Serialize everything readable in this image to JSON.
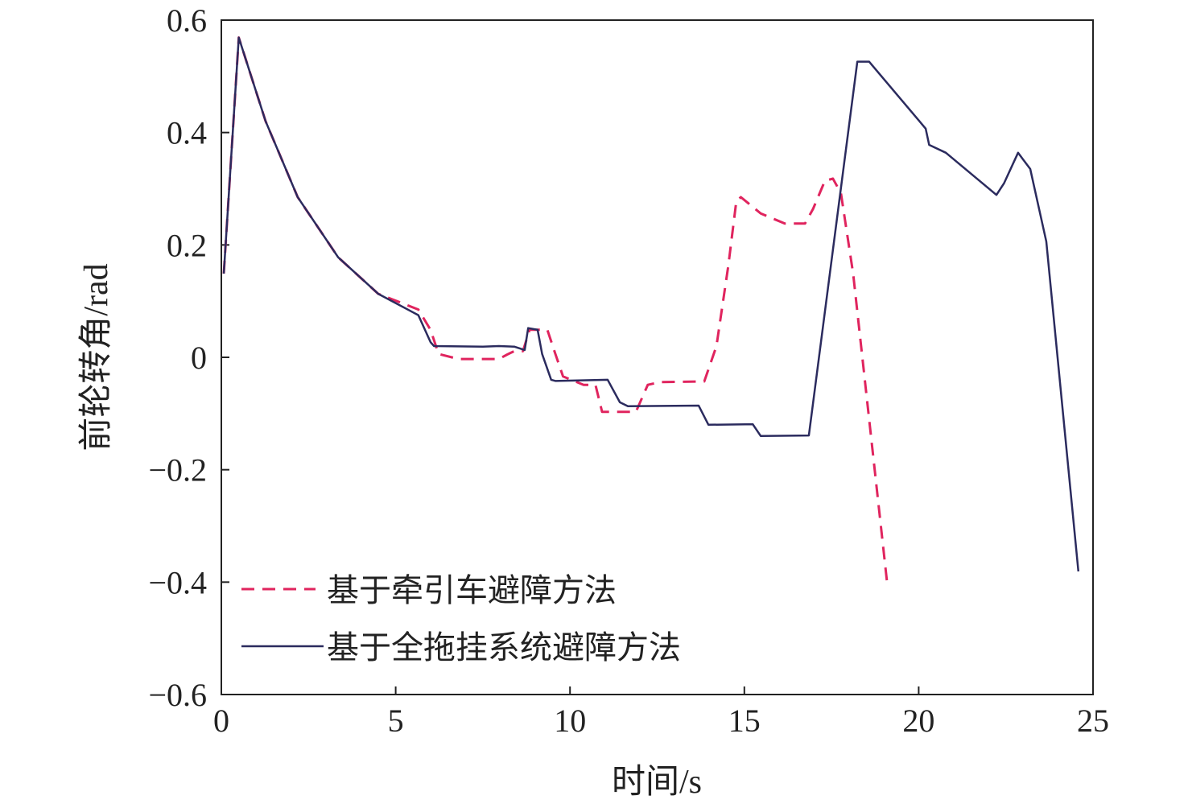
{
  "chart_data": {
    "type": "line",
    "xlabel": "时间/s",
    "ylabel": "前轮转角/rad",
    "xlim": [
      0,
      25
    ],
    "ylim": [
      -0.6,
      0.6
    ],
    "xticks": [
      "0",
      "5",
      "10",
      "15",
      "20",
      "25"
    ],
    "yticks": [
      "−0.6",
      "−0.4",
      "−0.2",
      "0",
      "0.2",
      "0.4",
      "0.6"
    ],
    "grid": false,
    "legend_position": "bottom-left",
    "series": [
      {
        "name": "基于牵引车避障方法",
        "style": "dashed",
        "color": "#e0245e",
        "x": [
          0.07,
          0.5,
          1.27,
          2.19,
          3.35,
          4.5,
          5.65,
          6.0,
          6.23,
          6.8,
          7.96,
          8.2,
          8.4,
          8.65,
          8.84,
          9.35,
          9.58,
          9.8,
          10.39,
          10.73,
          10.92,
          11.89,
          12.23,
          12.58,
          13.85,
          14.2,
          14.54,
          14.77,
          14.9,
          15.47,
          16.16,
          16.74,
          16.97,
          17.31,
          17.54,
          17.77,
          18.12,
          19.11
        ],
        "y": [
          0.149,
          0.569,
          0.42,
          0.285,
          0.178,
          0.113,
          0.085,
          0.049,
          0.006,
          -0.003,
          -0.003,
          0.005,
          0.011,
          0.011,
          0.049,
          0.049,
          0.006,
          -0.034,
          -0.049,
          -0.049,
          -0.097,
          -0.097,
          -0.049,
          -0.044,
          -0.043,
          0.02,
          0.163,
          0.278,
          0.285,
          0.256,
          0.238,
          0.238,
          0.264,
          0.314,
          0.318,
          0.292,
          0.149,
          -0.41
        ]
      },
      {
        "name": "基于全拖挂系统避障方法",
        "style": "solid",
        "color": "#2b2b5e",
        "x": [
          0.07,
          0.5,
          1.27,
          2.19,
          3.35,
          4.5,
          5.65,
          6.0,
          6.1,
          7.5,
          7.96,
          8.4,
          8.7,
          8.8,
          9.07,
          9.2,
          9.46,
          9.58,
          11.08,
          11.43,
          11.66,
          13.69,
          13.97,
          15.24,
          15.47,
          16.85,
          18.24,
          18.58,
          20.2,
          20.3,
          20.78,
          22.23,
          22.45,
          22.85,
          23.2,
          23.66,
          24.58
        ],
        "y": [
          0.149,
          0.569,
          0.42,
          0.285,
          0.178,
          0.113,
          0.075,
          0.027,
          0.02,
          0.019,
          0.02,
          0.019,
          0.013,
          0.052,
          0.049,
          0.006,
          -0.04,
          -0.042,
          -0.04,
          -0.08,
          -0.087,
          -0.086,
          -0.12,
          -0.119,
          -0.14,
          -0.139,
          0.526,
          0.526,
          0.407,
          0.378,
          0.364,
          0.289,
          0.31,
          0.364,
          0.335,
          0.206,
          -0.381
        ]
      }
    ]
  }
}
